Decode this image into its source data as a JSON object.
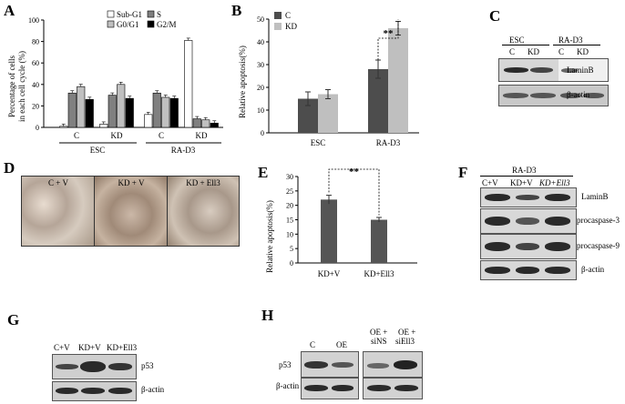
{
  "panels": {
    "A": "A",
    "B": "B",
    "C": "C",
    "D": "D",
    "E": "E",
    "F": "F",
    "G": "G",
    "H": "H"
  },
  "chart_A": {
    "type": "bar",
    "ylabel": "Percentage of cells in each cell cycle (%)",
    "ylabel_line1": "Percentage of cells",
    "ylabel_line2": "in each cell cycle (%)",
    "ylim": [
      0,
      100
    ],
    "yticks": [
      "0",
      "20",
      "40",
      "60",
      "80",
      "100"
    ],
    "legend": [
      "Sub-G1",
      "S",
      "G0/G1",
      "G2/M"
    ],
    "series_colors": [
      "#ffffff",
      "#808080",
      "#c0c0c0",
      "#000000"
    ],
    "groups": [
      {
        "label": "C",
        "values": [
          1,
          32,
          38,
          26
        ]
      },
      {
        "label": "KD",
        "values": [
          3,
          30,
          40,
          27
        ]
      },
      {
        "label": "C",
        "values": [
          12,
          32,
          28,
          27
        ]
      },
      {
        "label": "KD",
        "values": [
          81,
          8,
          7,
          4
        ]
      }
    ],
    "supergroups": [
      "ESC",
      "RA-D3"
    ]
  },
  "chart_B": {
    "type": "bar",
    "ylabel": "Relative apoptosis(%)",
    "ylim": [
      0,
      50
    ],
    "yticks": [
      "0",
      "10",
      "20",
      "30",
      "40",
      "50"
    ],
    "legend": [
      "C",
      "KD"
    ],
    "series_colors": [
      "#4d4d4d",
      "#bfbfbf"
    ],
    "categories": [
      "ESC",
      "RA-D3"
    ],
    "series": [
      {
        "name": "C",
        "values": [
          15,
          28
        ]
      },
      {
        "name": "KD",
        "values": [
          17,
          46
        ]
      }
    ],
    "significance": "**"
  },
  "chart_E": {
    "type": "bar",
    "ylabel": "Relative apoptosis(%)",
    "ylim": [
      0,
      30
    ],
    "yticks": [
      "0",
      "5",
      "10",
      "15",
      "20",
      "25",
      "30"
    ],
    "categories": [
      "KD+V",
      "KD+Ell3"
    ],
    "values": [
      22,
      15
    ],
    "significance": "**"
  },
  "blot_C": {
    "groups": [
      "ESC",
      "RA-D3"
    ],
    "lanes": [
      "C",
      "KD",
      "C",
      "KD"
    ],
    "rows": [
      "LaminB",
      "β-actin"
    ]
  },
  "photos_D": [
    "C + V",
    "KD + V",
    "KD + Ell3"
  ],
  "blot_F": {
    "group": "RA-D3",
    "lanes": [
      "C+V",
      "KD+V",
      "KD+Ell3"
    ],
    "rows": [
      "LaminB",
      "procaspase-3",
      "procaspase-9",
      "β-actin"
    ]
  },
  "blot_G": {
    "lanes": [
      "C+V",
      "KD+V",
      "KD+Ell3"
    ],
    "rows": [
      "p53",
      "β-actin"
    ]
  },
  "blot_H": {
    "lanes": [
      "C",
      "OE",
      "OE + siNS",
      "OE + siEll3"
    ],
    "lane3_line1": "OE +",
    "lane3_line2": "siNS",
    "lane4_line1": "OE +",
    "lane4_line2": "siEll3",
    "rows": [
      "p53",
      "β-actin"
    ]
  }
}
